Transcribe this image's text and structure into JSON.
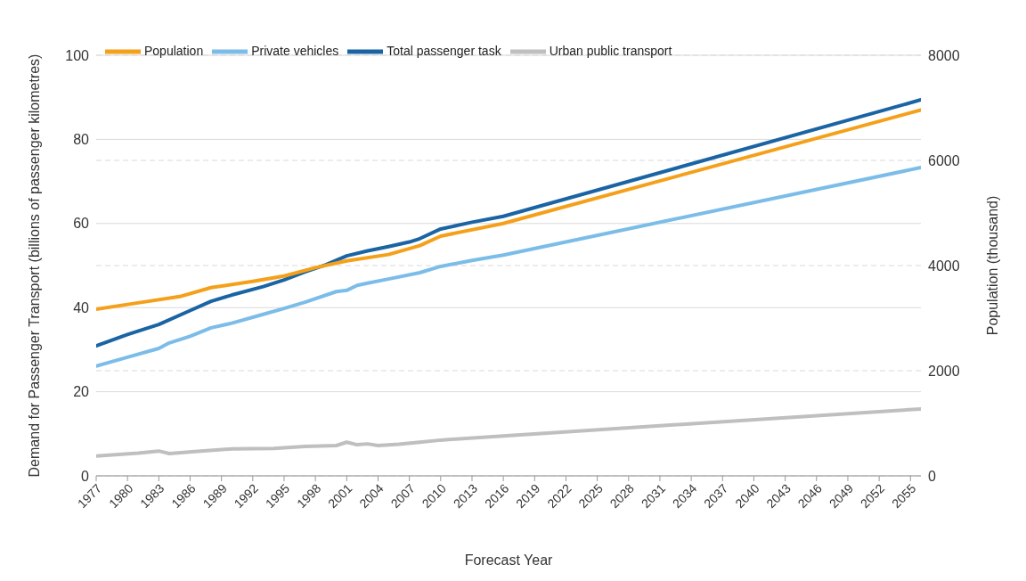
{
  "chart_data": {
    "type": "line",
    "xlabel": "Forecast Year",
    "ylabel": "Demand for Passenger Transport (billions of passenger kilometres)",
    "y2label": "Population (thousand)",
    "xlim": [
      1977,
      2056
    ],
    "xticks": [
      1977,
      1980,
      1983,
      1986,
      1989,
      1992,
      1995,
      1998,
      2001,
      2004,
      2007,
      2010,
      2013,
      2016,
      2019,
      2022,
      2025,
      2028,
      2031,
      2034,
      2037,
      2040,
      2043,
      2046,
      2049,
      2052,
      2055
    ],
    "ylim": [
      0,
      100
    ],
    "yticks": [
      0,
      20,
      40,
      60,
      80,
      100
    ],
    "y2lim": [
      0,
      8000
    ],
    "y2ticks": [
      0,
      2000,
      4000,
      6000,
      8000
    ],
    "grid": true,
    "legend": "top left",
    "marker": "none",
    "line_style": "solid",
    "series": [
      {
        "name": "Total passenger task",
        "color": "#1a64a4",
        "x": [
          1977,
          1980,
          1983,
          1986,
          1988,
          1990,
          1993,
          1995,
          1997,
          1999,
          2001,
          2003,
          2005,
          2007,
          2008,
          2010,
          2013,
          2016,
          2056
        ],
        "values": [
          30.9,
          33.6,
          36,
          39.3,
          41.5,
          43,
          45,
          46.6,
          48.5,
          50.2,
          52.3,
          53.5,
          54.5,
          55.6,
          56.4,
          58.7,
          60.3,
          61.7,
          89.4
        ]
      },
      {
        "name": "Private vehicles",
        "color": "#7bbde8",
        "x": [
          1977,
          1980,
          1983,
          1984,
          1986,
          1988,
          1990,
          1993,
          1995,
          1997,
          2000,
          2001,
          2002,
          2003,
          2005,
          2008,
          2010,
          2013,
          2016,
          2056
        ],
        "values": [
          26.1,
          28.2,
          30.3,
          31.6,
          33.2,
          35.2,
          36.3,
          38.4,
          39.8,
          41.3,
          43.8,
          44.1,
          45.3,
          45.8,
          46.8,
          48.3,
          49.8,
          51.2,
          52.5,
          73.3
        ]
      },
      {
        "name": "Urban public transport",
        "color": "#bfbfbf",
        "x": [
          1977,
          1981,
          1983,
          1984,
          1987,
          1990,
          1994,
          1997,
          2000,
          2001,
          2002,
          2003,
          2004,
          2006,
          2008,
          2010,
          2016,
          2056
        ],
        "values": [
          4.7,
          5.4,
          5.9,
          5.3,
          5.9,
          6.4,
          6.5,
          7,
          7.2,
          8,
          7.4,
          7.6,
          7.2,
          7.5,
          8,
          8.5,
          9.5,
          15.9
        ]
      },
      {
        "name": "Population",
        "color": "#f5a01a",
        "axis": "y2",
        "x": [
          1977,
          1981,
          1985,
          1988,
          1992,
          1995,
          1998,
          2001,
          2005,
          2008,
          2010,
          2016,
          2056
        ],
        "values": [
          3170,
          3290,
          3410,
          3580,
          3700,
          3800,
          3960,
          4090,
          4210,
          4380,
          4560,
          4800,
          6960
        ]
      }
    ]
  }
}
